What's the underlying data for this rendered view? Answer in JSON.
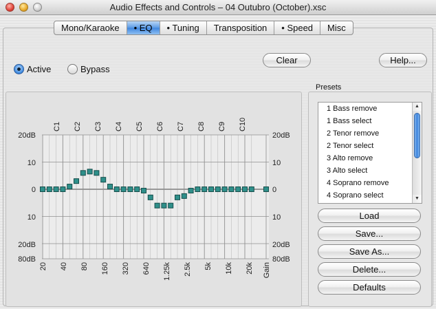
{
  "window": {
    "title": "Audio Effects and Controls – 04 Outubro (October).xsc"
  },
  "tabs": [
    {
      "label": "Mono/Karaoke",
      "selected": false
    },
    {
      "label": "• EQ",
      "selected": true
    },
    {
      "label": "• Tuning",
      "selected": false
    },
    {
      "label": "Transposition",
      "selected": false
    },
    {
      "label": "• Speed",
      "selected": false
    },
    {
      "label": "Misc",
      "selected": false
    }
  ],
  "mode": {
    "active_label": "Active",
    "bypass_label": "Bypass",
    "selected": "active"
  },
  "buttons": {
    "clear": "Clear",
    "help": "Help...",
    "load": "Load",
    "save": "Save...",
    "save_as": "Save As...",
    "delete": "Delete...",
    "defaults": "Defaults"
  },
  "presets": {
    "label": "Presets",
    "items": [
      "1 Bass remove",
      "1 Bass select",
      "2 Tenor remove",
      "2 Tenor select",
      "3 Alto remove",
      "3 Alto select",
      "4 Soprano remove",
      "4 Soprano select"
    ]
  },
  "eq": {
    "db_labels_left": [
      "20dB",
      "10",
      "0",
      "10",
      "20dB",
      "80dB"
    ],
    "db_labels_right": [
      "20dB",
      "10",
      "0",
      "10",
      "20dB",
      "80dB"
    ],
    "octave_labels": [
      "C1",
      "C2",
      "C3",
      "C4",
      "C5",
      "C6",
      "C7",
      "C8",
      "C9",
      "C10"
    ],
    "freq_labels": [
      "20",
      "40",
      "80",
      "160",
      "320",
      "640",
      "1.25k",
      "2.5k",
      "5k",
      "10k",
      "20k"
    ],
    "gain_label": "Gain",
    "band_gains_db": [
      0,
      0,
      0,
      0,
      1,
      3,
      6,
      6.5,
      6,
      3.5,
      1,
      0,
      0,
      0,
      0,
      -0.5,
      -3,
      -6,
      -6,
      -6,
      -3,
      -2.5,
      -0.5,
      0,
      0,
      0,
      0,
      0,
      0,
      0,
      0,
      0
    ],
    "master_gain_db": 0,
    "colors": {
      "band_handle": "#2f8f8a",
      "grid": "#8f8f8f",
      "zero_line": "#666666"
    }
  }
}
